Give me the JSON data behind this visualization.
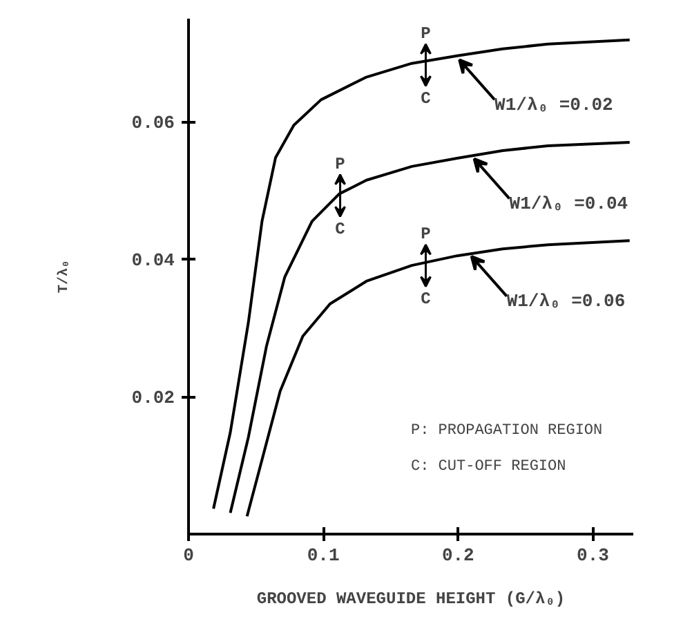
{
  "chart_data": {
    "type": "line",
    "xlabel": "GROOVED WAVEGUIDE HEIGHT (G/λ₀)",
    "ylabel": "T/λ₀",
    "xlim": [
      0,
      0.33
    ],
    "ylim": [
      0,
      0.075
    ],
    "xticks": [
      0,
      0.1,
      0.2,
      0.3
    ],
    "yticks": [
      0.02,
      0.04,
      0.06
    ],
    "grid": false,
    "marker": "none",
    "line_style": "solid",
    "series": [
      {
        "color": "#000000",
        "x": [
          0.0185,
          0.031,
          0.0444,
          0.0545,
          0.0646,
          0.0781,
          0.0983,
          0.132,
          0.1657,
          0.1993,
          0.233,
          0.2667,
          0.3273
        ],
        "values": [
          0.0037,
          0.0148,
          0.0308,
          0.0455,
          0.0548,
          0.0595,
          0.0632,
          0.0665,
          0.0685,
          0.0696,
          0.0706,
          0.0713,
          0.0719
        ]
      },
      {
        "color": "#000000",
        "x": [
          0.031,
          0.0444,
          0.0579,
          0.0714,
          0.0916,
          0.1118,
          0.132,
          0.1657,
          0.1993,
          0.233,
          0.2667,
          0.3273
        ],
        "values": [
          0.0031,
          0.0141,
          0.0274,
          0.0374,
          0.0455,
          0.0495,
          0.0515,
          0.0535,
          0.0547,
          0.0558,
          0.0565,
          0.057
        ]
      },
      {
        "color": "#000000",
        "x": [
          0.0434,
          0.0545,
          0.068,
          0.0848,
          0.105,
          0.132,
          0.1657,
          0.1993,
          0.233,
          0.2667,
          0.3273
        ],
        "values": [
          0.0026,
          0.0108,
          0.0208,
          0.0288,
          0.0335,
          0.0368,
          0.0391,
          0.0405,
          0.0415,
          0.0421,
          0.0427
        ]
      }
    ],
    "annotations": [
      {
        "text": "P",
        "x": 0.176,
        "y": 0.0686
      },
      {
        "text": "C",
        "x": 0.176,
        "y": 0.0686
      },
      {
        "text": "P",
        "x": 0.1125,
        "y": 0.0496
      },
      {
        "text": "C",
        "x": 0.1125,
        "y": 0.0496
      },
      {
        "text": "P",
        "x": 0.176,
        "y": 0.0394
      },
      {
        "text": "C",
        "x": 0.176,
        "y": 0.0394
      },
      {
        "text": "W1/λ₀ =0.02",
        "x": 0.199,
        "y": 0.0696
      },
      {
        "text": "W1/λ₀ =0.04",
        "x": 0.21,
        "y": 0.0552
      },
      {
        "text": "W1/λ₀ =0.06",
        "x": 0.208,
        "y": 0.041
      },
      "P: PROPAGATION REGION",
      "C: CUT-OFF REGION"
    ]
  }
}
